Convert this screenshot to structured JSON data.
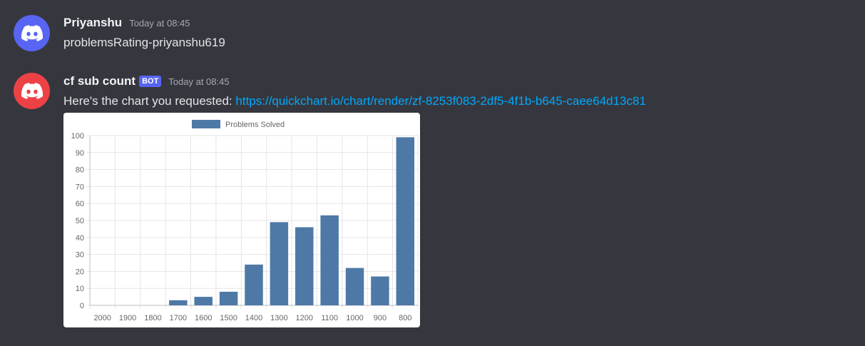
{
  "messages": [
    {
      "username": "Priyanshu",
      "timestamp": "Today at 08:45",
      "text": "problemsRating-priyanshu619",
      "avatar_color": "#5865f2",
      "avatar_icon": "discord-logo-icon"
    },
    {
      "username": "cf sub count",
      "badge": "BOT",
      "timestamp": "Today at 08:45",
      "text": "Here's the chart you requested: ",
      "link": "https://quickchart.io/chart/render/zf-8253f083-2df5-4f1b-b645-caee64d13c81",
      "avatar_color": "#ed4245",
      "avatar_icon": "discord-logo-icon"
    }
  ],
  "chart_data": {
    "type": "bar",
    "categories": [
      "2000",
      "1900",
      "1800",
      "1700",
      "1600",
      "1500",
      "1400",
      "1300",
      "1200",
      "1100",
      "1000",
      "900",
      "800"
    ],
    "series": [
      {
        "name": "Problems Solved",
        "values": [
          0,
          0,
          0,
          3,
          5,
          8,
          24,
          49,
          46,
          53,
          22,
          17,
          99
        ],
        "color": "#4e79a7"
      }
    ],
    "yticks": [
      "0",
      "10",
      "20",
      "30",
      "40",
      "50",
      "60",
      "70",
      "80",
      "90",
      "100"
    ],
    "ylim": [
      0,
      100
    ],
    "grid": true,
    "legend": "top-center"
  }
}
